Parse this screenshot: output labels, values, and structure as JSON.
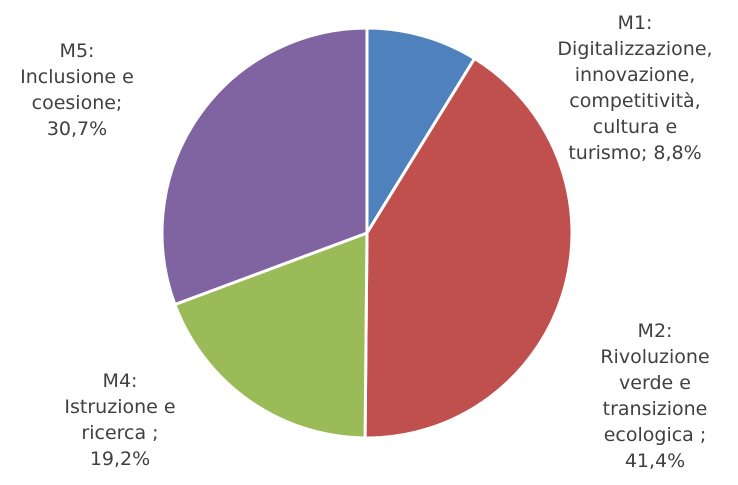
{
  "chart_data": {
    "type": "pie",
    "title": "",
    "slices": [
      {
        "label_lines": [
          "M1:",
          "Digitalizzazione,",
          "innovazione,",
          "competitività,",
          "cultura e",
          "turismo; 8,8%"
        ],
        "value": 8.8,
        "color": "#4F81BD"
      },
      {
        "label_lines": [
          "M2:",
          "Rivoluzione",
          "verde e",
          "transizione",
          "ecologica ;",
          "41,4%"
        ],
        "value": 41.4,
        "color": "#C0504D"
      },
      {
        "label_lines": [
          "M4:",
          "Istruzione e",
          "ricerca ;",
          "19,2%"
        ],
        "value": 19.2,
        "color": "#9BBB59"
      },
      {
        "label_lines": [
          "M5:",
          "Inclusione e",
          "coesione;",
          "30,7%"
        ],
        "value": 30.7,
        "color": "#8064A2"
      }
    ]
  }
}
